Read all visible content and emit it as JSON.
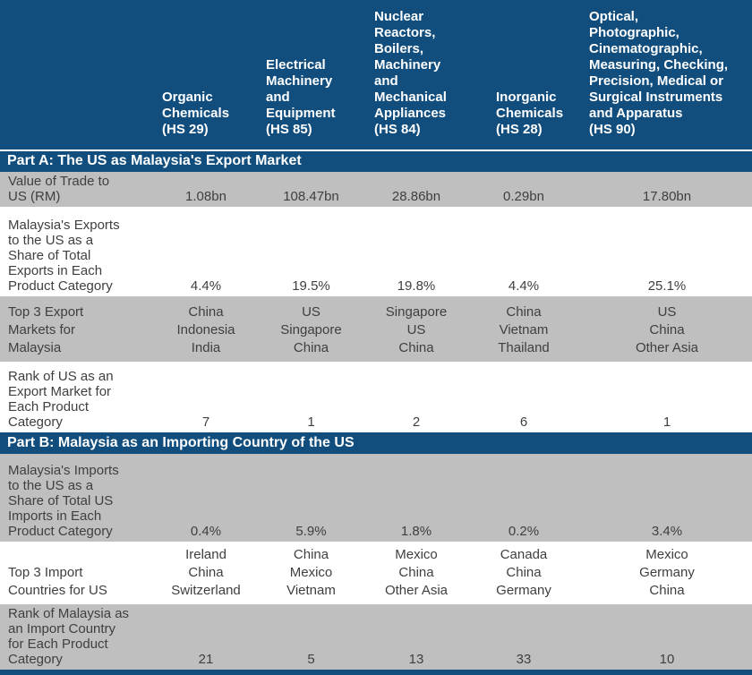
{
  "theme": {
    "navy": "#114E7E",
    "row_gray": "#BFBFBF",
    "row_white": "#FFFFFF",
    "header_text": "#FFFFFF",
    "body_text": "#3F3F3F"
  },
  "chart_data": {
    "type": "table",
    "column_headers": [
      "",
      "Organic\nChemicals\n(HS 29)",
      "Electrical\nMachinery\nand\nEquipment\n(HS 85)",
      "Nuclear\nReactors,\nBoilers,\nMachinery\nand\nMechanical\nAppliances\n(HS 84)",
      "Inorganic\nChemicals\n(HS 28)",
      "Optical,\nPhotographic,\nCinematographic,\nMeasuring, Checking,\nPrecision, Medical or\nSurgical Instruments\nand Apparatus\n(HS 90)"
    ],
    "sections": [
      {
        "title": "Part A: The US as Malaysia's Export Market",
        "rows": [
          {
            "label": "Value of Trade to\nUS (RM)",
            "values": [
              "1.08bn",
              "108.47bn",
              "28.86bn",
              "0.29bn",
              "17.80bn"
            ]
          },
          {
            "label": "Malaysia's Exports\nto the US as a\nShare of Total\nExports in Each\nProduct Category",
            "values": [
              "4.4%",
              "19.5%",
              "19.8%",
              "4.4%",
              "25.1%"
            ]
          },
          {
            "label": "Top 3 Export\nMarkets for\nMalaysia",
            "values": [
              "China\nIndonesia\nIndia",
              "US\nSingapore\nChina",
              "Singapore\nUS\nChina",
              "China\nVietnam\nThailand",
              "US\nChina\nOther Asia"
            ]
          },
          {
            "label": "Rank of US as an\nExport Market for\nEach Product\nCategory",
            "values": [
              "7",
              "1",
              "2",
              "6",
              "1"
            ]
          }
        ]
      },
      {
        "title": "Part B: Malaysia as an Importing Country of the US",
        "rows": [
          {
            "label": "Malaysia's Imports\nto the US as a\nShare of Total US\nImports in Each\nProduct Category",
            "values": [
              "0.4%",
              "5.9%",
              "1.8%",
              "0.2%",
              "3.4%"
            ]
          },
          {
            "label": "Top 3 Import\nCountries for US",
            "values": [
              "Ireland\nChina\nSwitzerland",
              "China\nMexico\nVietnam",
              "Mexico\nChina\nOther Asia",
              "Canada\nChina\nGermany",
              "Mexico\nGermany\nChina"
            ]
          },
          {
            "label": "Rank of Malaysia as\nan Import Country\nfor Each Product\nCategory",
            "values": [
              "21",
              "5",
              "13",
              "33",
              "10"
            ]
          }
        ]
      }
    ]
  }
}
